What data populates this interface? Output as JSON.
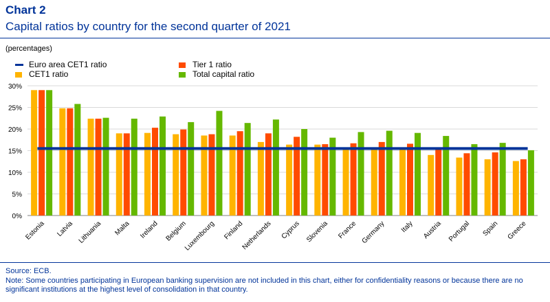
{
  "header": {
    "chart_label": "Chart 2",
    "title": "Capital ratios by country for the second quarter of 2021",
    "units": "(percentages)"
  },
  "legend": [
    {
      "key": "cet1_avg",
      "label": "Euro area CET1  ratio",
      "color": "#003399",
      "kind": "line"
    },
    {
      "key": "tier1",
      "label": "Tier 1 ratio",
      "color": "#ff4b00",
      "kind": "bar"
    },
    {
      "key": "cet1",
      "label": "CET1  ratio",
      "color": "#ffb400",
      "kind": "bar"
    },
    {
      "key": "total",
      "label": "Total capital ratio",
      "color": "#65b800",
      "kind": "bar"
    }
  ],
  "chart_data": {
    "type": "bar",
    "categories": [
      "Estonia",
      "Latvia",
      "Lithuania",
      "Malta",
      "Ireland",
      "Belgium",
      "Luxembourg",
      "Finland",
      "Netherlands",
      "Cyprus",
      "Slovenia",
      "France",
      "Germany",
      "Italy",
      "Austria",
      "Portugal",
      "Spain",
      "Greece"
    ],
    "series": [
      {
        "name": "CET1  ratio",
        "color": "#ffb400",
        "values": [
          29.0,
          24.8,
          22.4,
          19.0,
          19.1,
          18.8,
          18.5,
          18.5,
          17.0,
          16.4,
          16.4,
          15.5,
          15.6,
          15.5,
          14.0,
          13.4,
          13.0,
          12.6
        ]
      },
      {
        "name": "Tier 1 ratio",
        "color": "#ff4b00",
        "values": [
          29.0,
          24.8,
          22.4,
          19.0,
          20.3,
          19.9,
          18.8,
          19.5,
          19.0,
          18.2,
          16.5,
          16.7,
          17.0,
          16.6,
          15.4,
          14.4,
          14.6,
          13.0
        ]
      },
      {
        "name": "Total capital ratio",
        "color": "#65b800",
        "values": [
          29.0,
          25.8,
          22.6,
          22.4,
          22.9,
          21.6,
          24.2,
          21.4,
          22.2,
          20.0,
          18.0,
          19.3,
          19.6,
          19.1,
          18.4,
          16.5,
          16.8,
          15.1
        ]
      }
    ],
    "reference_line": {
      "name": "Euro area CET1  ratio",
      "value": 15.5,
      "color": "#003399"
    },
    "ylim": [
      0,
      30
    ],
    "yticks": [
      0,
      5,
      10,
      15,
      20,
      25,
      30
    ],
    "ytick_labels": [
      "0%",
      "5%",
      "10%",
      "15%",
      "20%",
      "25%",
      "30%"
    ],
    "grid": "horizontal",
    "legend_position": "top"
  },
  "footer": {
    "source": "Source: ECB.",
    "note": "Note: Some countries participating in European banking supervision are not included in this chart, either for confidentiality reasons or because there are no significant institutions at the highest level of consolidation in that country."
  }
}
